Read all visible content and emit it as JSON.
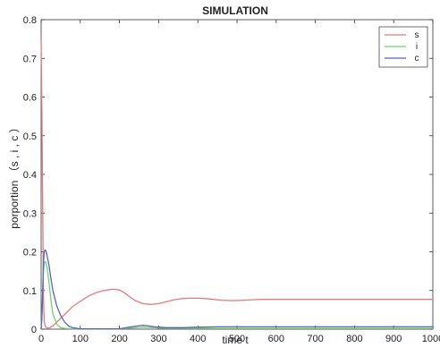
{
  "chart_data": {
    "type": "line",
    "title": "SIMULATION",
    "xlabel": "time t",
    "ylabel": "porportion （s , i , c ）",
    "xlim": [
      0,
      1000
    ],
    "ylim": [
      0,
      0.8
    ],
    "x_ticks": [
      0,
      100,
      200,
      300,
      400,
      500,
      600,
      700,
      800,
      900,
      1000
    ],
    "x_tick_labels": [
      "0",
      "100",
      "200",
      "300",
      "400",
      "500",
      "600",
      "700",
      "800",
      "900",
      "1000"
    ],
    "y_ticks": [
      0,
      0.1,
      0.2,
      0.3,
      0.4,
      0.5,
      0.6,
      0.7,
      0.8
    ],
    "y_tick_labels": [
      "0",
      "0.1",
      "0.2",
      "0.3",
      "0.4",
      "0.5",
      "0.6",
      "0.7",
      "0.8"
    ],
    "grid": false,
    "legend_position": "top-right",
    "series": [
      {
        "name": "s",
        "color": "#e8787c",
        "x": [
          0,
          2,
          4,
          6,
          8,
          10,
          15,
          20,
          30,
          40,
          60,
          80,
          100,
          120,
          140,
          160,
          180,
          190,
          200,
          210,
          220,
          240,
          260,
          280,
          300,
          320,
          340,
          360,
          380,
          400,
          420,
          440,
          460,
          480,
          500,
          520,
          540,
          560,
          600,
          650,
          700,
          800,
          900,
          1000
        ],
        "y": [
          0.75,
          0.55,
          0.3,
          0.08,
          0.02,
          0.008,
          0.003,
          0.003,
          0.008,
          0.018,
          0.038,
          0.058,
          0.072,
          0.085,
          0.094,
          0.1,
          0.103,
          0.103,
          0.101,
          0.096,
          0.088,
          0.074,
          0.066,
          0.064,
          0.066,
          0.071,
          0.076,
          0.079,
          0.08,
          0.08,
          0.079,
          0.077,
          0.075,
          0.074,
          0.074,
          0.075,
          0.076,
          0.077,
          0.077,
          0.077,
          0.077,
          0.077,
          0.077,
          0.077
        ]
      },
      {
        "name": "i",
        "color": "#69d86a",
        "x": [
          0,
          2,
          4,
          6,
          8,
          10,
          12,
          15,
          20,
          25,
          30,
          40,
          50,
          60,
          80,
          100,
          150,
          200,
          230,
          260,
          290,
          320,
          400,
          500,
          600,
          1000
        ],
        "y": [
          0.0,
          0.04,
          0.1,
          0.15,
          0.17,
          0.175,
          0.172,
          0.16,
          0.12,
          0.075,
          0.04,
          0.012,
          0.004,
          0.002,
          0.001,
          0.001,
          0.001,
          0.001,
          0.003,
          0.005,
          0.004,
          0.002,
          0.002,
          0.002,
          0.002,
          0.002
        ]
      },
      {
        "name": "c",
        "color": "#5a62c8",
        "x": [
          0,
          2,
          4,
          6,
          8,
          10,
          12,
          15,
          20,
          25,
          30,
          40,
          50,
          60,
          70,
          80,
          100,
          150,
          200,
          230,
          250,
          260,
          270,
          290,
          320,
          360,
          400,
          450,
          500,
          600,
          700,
          800,
          900,
          1000
        ],
        "y": [
          0.0,
          0.03,
          0.1,
          0.17,
          0.2,
          0.205,
          0.203,
          0.19,
          0.165,
          0.13,
          0.1,
          0.06,
          0.035,
          0.018,
          0.008,
          0.004,
          0.001,
          0.001,
          0.001,
          0.006,
          0.009,
          0.01,
          0.009,
          0.006,
          0.004,
          0.004,
          0.005,
          0.006,
          0.006,
          0.006,
          0.006,
          0.006,
          0.006,
          0.006
        ]
      }
    ]
  }
}
